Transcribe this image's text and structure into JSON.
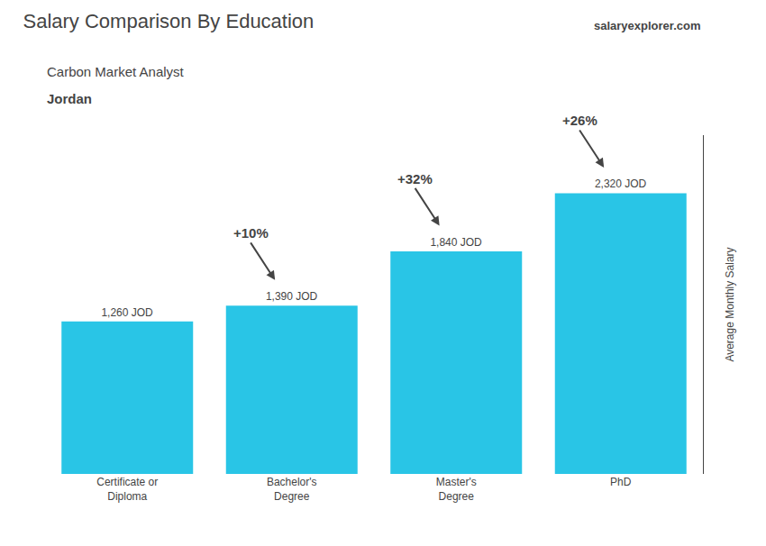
{
  "chart_data": {
    "type": "bar",
    "title": "Salary Comparison By Education",
    "subtitle": "Carbon Market Analyst",
    "country": "Jordan",
    "brand": "salaryexplorer.com",
    "ylabel": "Average Monthly Salary",
    "categories": [
      "Certificate or\nDiploma",
      "Bachelor's\nDegree",
      "Master's\nDegree",
      "PhD"
    ],
    "values": [
      1260,
      1390,
      1840,
      2320
    ],
    "value_labels": [
      "1,260 JOD",
      "1,390 JOD",
      "1,840 JOD",
      "2,320 JOD"
    ],
    "data_labels": true,
    "annotations": [
      "+10%",
      "+32%",
      "+26%"
    ],
    "color": "#29c5e6",
    "ylim": [
      0,
      2800
    ],
    "tick_labels": "x",
    "grid": false
  }
}
